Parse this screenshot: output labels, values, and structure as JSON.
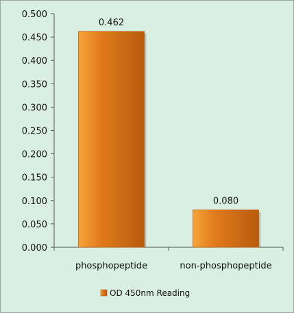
{
  "chart_data": {
    "type": "bar",
    "categories": [
      "phosphopeptide",
      "non-phosphopeptide"
    ],
    "series": [
      {
        "name": "OD 450nm Reading",
        "values": [
          0.462,
          0.08
        ]
      }
    ],
    "data_labels": [
      "0.462",
      "0.080"
    ],
    "y_ticks": [
      0.0,
      0.05,
      0.1,
      0.15,
      0.2,
      0.25,
      0.3,
      0.35,
      0.4,
      0.45,
      0.5
    ],
    "y_tick_labels": [
      "0.000",
      "0.050",
      "0.100",
      "0.150",
      "0.200",
      "0.250",
      "0.300",
      "0.350",
      "0.400",
      "0.450",
      "0.500"
    ],
    "ylim": [
      0,
      0.5
    ],
    "grid": false,
    "legend": "bottom",
    "colors": {
      "background": "#d9efe2",
      "bar": "#e07a1c",
      "bar_light": "#f7a33a",
      "bar_dark": "#b95b0c",
      "axis": "#555555"
    }
  }
}
